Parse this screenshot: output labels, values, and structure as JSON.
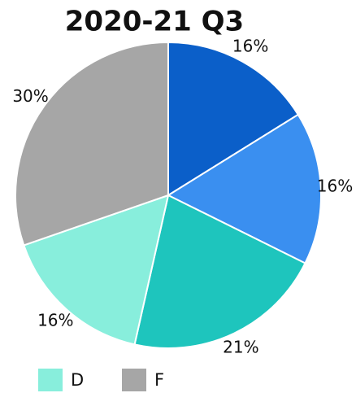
{
  "chart_data": {
    "type": "pie",
    "title": "2020-21 Q3",
    "categories": [
      null,
      null,
      null,
      "D",
      "F"
    ],
    "values": [
      16,
      16,
      21,
      16,
      30
    ],
    "value_labels": [
      "16%",
      "16%",
      "21%",
      "16%",
      "30%"
    ],
    "colors": [
      "#0b5fc9",
      "#3a8ff0",
      "#1ec5bd",
      "#88eedc",
      "#a6a6a6"
    ],
    "legend": "bottom"
  }
}
